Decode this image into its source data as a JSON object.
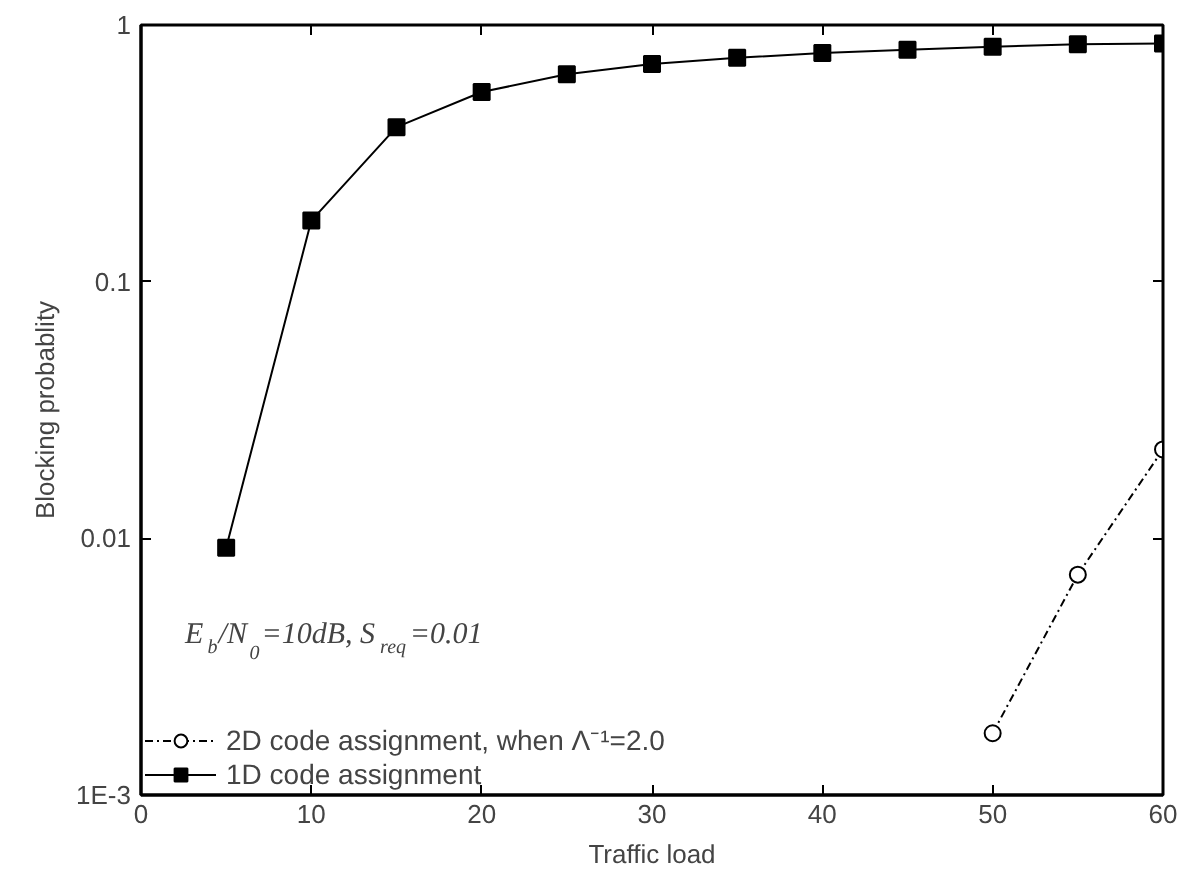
{
  "chart_data": {
    "type": "line",
    "xlabel": "Traffic load",
    "ylabel": "Blocking probablity",
    "x": [
      5,
      10,
      15,
      20,
      25,
      30,
      35,
      40,
      45,
      50,
      55,
      60
    ],
    "series": [
      {
        "name": "2D code assignment, when Λ⁻¹=2.0",
        "color": "#000000",
        "marker": "circle",
        "line_style": "dashed",
        "x": [
          50,
          55,
          60
        ],
        "values": [
          0.00174,
          0.00722,
          0.0222
        ]
      },
      {
        "name": "1D code assignment",
        "color": "#000000",
        "marker": "square",
        "line_style": "solid",
        "values": [
          0.0092,
          0.173,
          0.4,
          0.548,
          0.643,
          0.705,
          0.745,
          0.778,
          0.8,
          0.822,
          0.842,
          0.848
        ]
      }
    ],
    "log": "y",
    "xlim": [
      0,
      60
    ],
    "ylim": [
      0.001,
      1
    ],
    "xticks": [
      0,
      10,
      20,
      30,
      40,
      50,
      60
    ],
    "yticks": [
      {
        "value": 0.001,
        "label": "1E-3"
      },
      0.01,
      0.1,
      1
    ],
    "grid": false,
    "legend": "bottom left",
    "annotations": [
      "E$_{b}$/N$_{0}$=10dB, S$_{req}$=0.01"
    ]
  }
}
